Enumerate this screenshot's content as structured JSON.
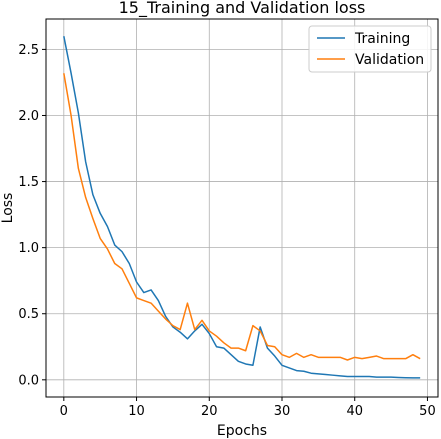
{
  "chart_data": {
    "type": "line",
    "title": "15_Training and Validation loss",
    "xlabel": "Epochs",
    "ylabel": "Loss",
    "xlim": [
      -2.45,
      51.45
    ],
    "ylim": [
      -0.13,
      2.73
    ],
    "xticks": [
      0,
      10,
      20,
      30,
      40,
      50
    ],
    "yticks": [
      0.0,
      0.5,
      1.0,
      1.5,
      2.0,
      2.5
    ],
    "grid": true,
    "legend_position": "top-right",
    "series": [
      {
        "name": "Training",
        "color": "#1f77b4",
        "x": [
          0,
          1,
          2,
          3,
          4,
          5,
          6,
          7,
          8,
          9,
          10,
          11,
          12,
          13,
          14,
          15,
          16,
          17,
          18,
          19,
          20,
          21,
          22,
          23,
          24,
          25,
          26,
          27,
          28,
          29,
          30,
          31,
          32,
          33,
          34,
          35,
          36,
          37,
          38,
          39,
          40,
          41,
          42,
          43,
          44,
          45,
          46,
          47,
          48,
          49
        ],
        "values": [
          2.6,
          2.32,
          2.02,
          1.65,
          1.4,
          1.26,
          1.16,
          1.02,
          0.97,
          0.88,
          0.74,
          0.66,
          0.68,
          0.6,
          0.48,
          0.4,
          0.36,
          0.31,
          0.37,
          0.42,
          0.35,
          0.25,
          0.24,
          0.19,
          0.14,
          0.12,
          0.11,
          0.4,
          0.24,
          0.18,
          0.11,
          0.09,
          0.07,
          0.065,
          0.05,
          0.045,
          0.04,
          0.035,
          0.03,
          0.025,
          0.025,
          0.025,
          0.025,
          0.02,
          0.02,
          0.02,
          0.018,
          0.016,
          0.015,
          0.015
        ]
      },
      {
        "name": "Validation",
        "color": "#ff7f0e",
        "x": [
          0,
          1,
          2,
          3,
          4,
          5,
          6,
          7,
          8,
          9,
          10,
          11,
          12,
          13,
          14,
          15,
          16,
          17,
          18,
          19,
          20,
          21,
          22,
          23,
          24,
          25,
          26,
          27,
          28,
          29,
          30,
          31,
          32,
          33,
          34,
          35,
          36,
          37,
          38,
          39,
          40,
          41,
          42,
          43,
          44,
          45,
          46,
          47,
          48,
          49
        ],
        "values": [
          2.32,
          2.0,
          1.6,
          1.38,
          1.22,
          1.07,
          0.99,
          0.88,
          0.84,
          0.73,
          0.62,
          0.6,
          0.58,
          0.52,
          0.46,
          0.41,
          0.38,
          0.58,
          0.38,
          0.45,
          0.37,
          0.33,
          0.28,
          0.24,
          0.24,
          0.22,
          0.41,
          0.37,
          0.26,
          0.25,
          0.19,
          0.17,
          0.2,
          0.17,
          0.19,
          0.17,
          0.17,
          0.17,
          0.17,
          0.15,
          0.17,
          0.16,
          0.17,
          0.18,
          0.16,
          0.16,
          0.16,
          0.16,
          0.19,
          0.16
        ]
      }
    ]
  }
}
